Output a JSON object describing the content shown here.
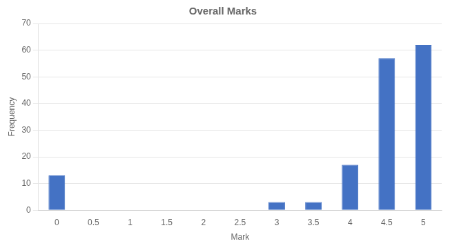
{
  "chart_data": {
    "type": "bar",
    "title": "Overall Marks",
    "xlabel": "Mark",
    "ylabel": "Frequency",
    "categories": [
      "0",
      "0.5",
      "1",
      "1.5",
      "2",
      "2.5",
      "3",
      "3.5",
      "4",
      "4.5",
      "5"
    ],
    "values": [
      13,
      0,
      0,
      0,
      0,
      0,
      3,
      3,
      17,
      57,
      62
    ],
    "color": "#4472C4",
    "ylim": [
      0,
      70
    ],
    "yticks": [
      0,
      10,
      20,
      30,
      40,
      50,
      60,
      70
    ],
    "grid": true
  }
}
